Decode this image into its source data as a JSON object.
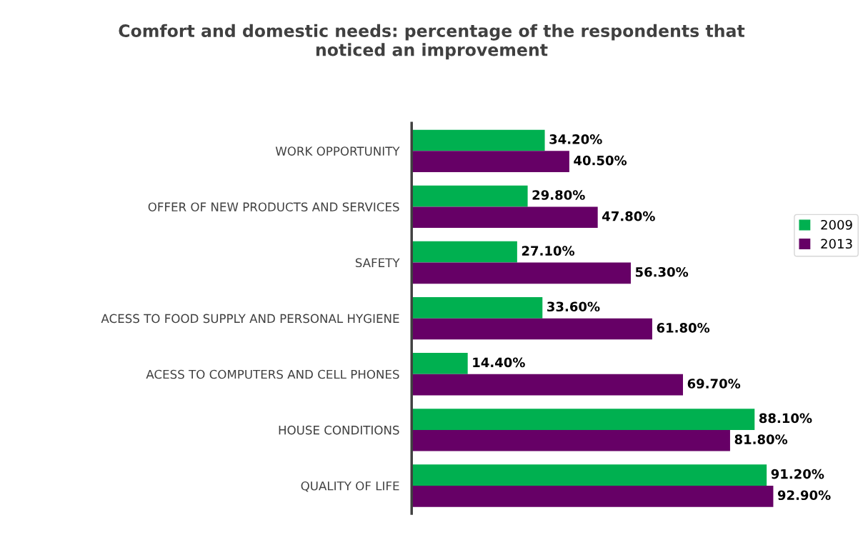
{
  "chart_data": {
    "type": "bar",
    "orientation": "horizontal",
    "title": "Comfort and domestic needs: percentage of the respondents that\nnoticed an improvement",
    "categories": [
      "WORK OPPORTUNITY",
      "OFFER OF NEW PRODUCTS AND SERVICES",
      "SAFETY",
      "ACESS TO FOOD SUPPLY AND PERSONAL HYGIENE",
      "ACESS TO COMPUTERS AND CELL PHONES",
      "HOUSE CONDITIONS",
      "QUALITY OF LIFE"
    ],
    "series": [
      {
        "name": "2009",
        "color": "#00b050",
        "values": [
          34.2,
          29.8,
          27.1,
          33.6,
          14.4,
          88.1,
          91.2
        ],
        "value_labels": [
          "34.20%",
          "29.80%",
          "27.10%",
          "33.60%",
          "14.40%",
          "88.10%",
          "91.20%"
        ]
      },
      {
        "name": "2013",
        "color": "#660066",
        "values": [
          40.5,
          47.8,
          56.3,
          61.8,
          69.7,
          81.8,
          92.9
        ],
        "value_labels": [
          "40.50%",
          "47.80%",
          "56.30%",
          "61.80%",
          "69.70%",
          "81.80%",
          "92.90%"
        ]
      }
    ],
    "tick_labels": "y",
    "grid": false,
    "legend": "right"
  }
}
